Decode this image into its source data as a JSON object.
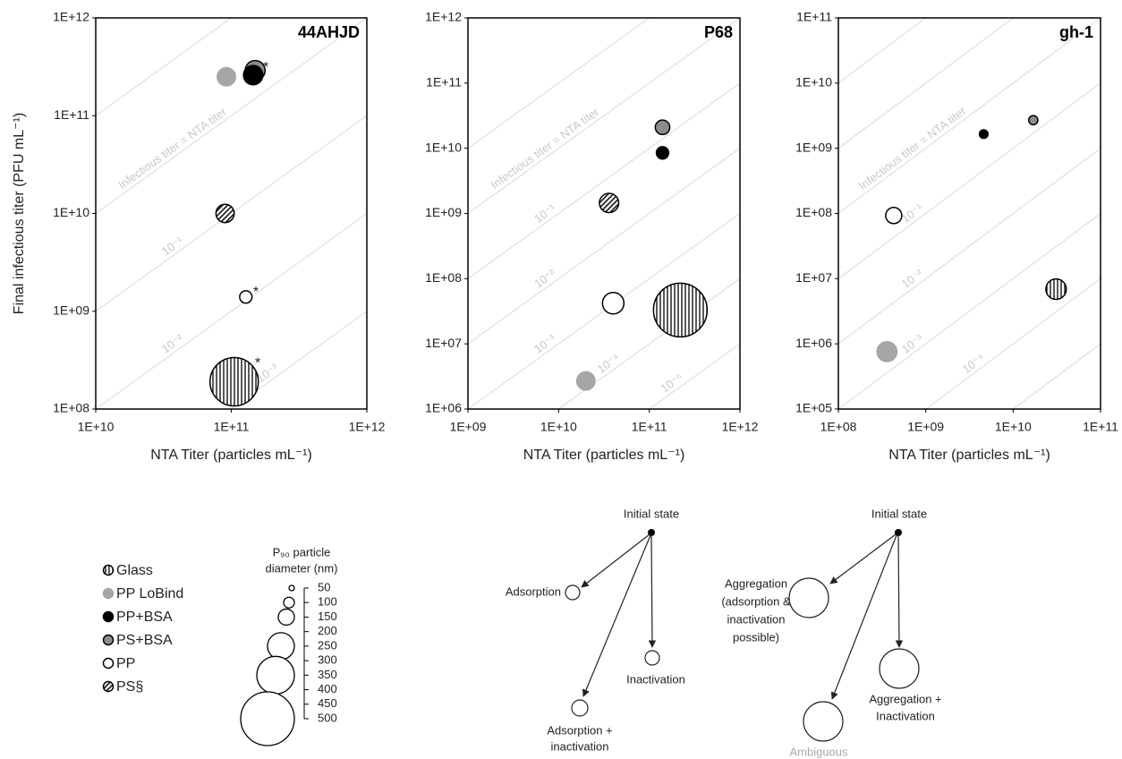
{
  "chart_data": [
    {
      "type": "scatter",
      "title": "44AHJD",
      "xlabel": "NTA Titer (particles mL⁻¹)",
      "ylabel": "Final infectious titer (PFU mL⁻¹)",
      "log_x": true,
      "log_y": true,
      "xlim": [
        10000000000.0,
        1000000000000.0
      ],
      "ylim": [
        100000000.0,
        1000000000000.0
      ],
      "xticks": [
        {
          "value": 10000000000.0,
          "label": "1E+10"
        },
        {
          "value": 100000000000.0,
          "label": "1E+11"
        },
        {
          "value": 1000000000000.0,
          "label": "1E+12"
        }
      ],
      "yticks": [
        {
          "value": 100000000.0,
          "label": "1E+08"
        },
        {
          "value": 1000000000.0,
          "label": "1E+09"
        },
        {
          "value": 10000000000.0,
          "label": "1E+10"
        },
        {
          "value": 100000000000.0,
          "label": "1E+11"
        },
        {
          "value": 1000000000000.0,
          "label": "1E+12"
        }
      ],
      "ratio_lines": [
        {
          "value": 10
        },
        {
          "value": 1,
          "label": "Infectious titer = NTA titer"
        },
        {
          "value": 0.1,
          "label": "10⁻¹"
        },
        {
          "value": 0.01,
          "label": "10⁻²"
        },
        {
          "value": 0.001,
          "label": "10⁻³"
        },
        {
          "value": 0.0001
        }
      ],
      "series": [
        {
          "name": "Glass",
          "color": "#ffffff",
          "edgecolor": "#000000",
          "hatch": "vertical",
          "x": [
            105000000000.0
          ],
          "values": [
            190000000.0
          ],
          "sizes": [
            450
          ],
          "note": "*"
        },
        {
          "name": "PP LoBind",
          "color": "#a6a6a6",
          "edgecolor": "#a6a6a6",
          "x": [
            92000000000.0
          ],
          "values": [
            250000000000.0
          ],
          "sizes": [
            170
          ]
        },
        {
          "name": "PP+BSA",
          "color": "#000000",
          "edgecolor": "#000000",
          "x": [
            145000000000.0
          ],
          "values": [
            260000000000.0
          ],
          "sizes": [
            180
          ],
          "note": "*"
        },
        {
          "name": "PS+BSA",
          "color": "#8c8c8c",
          "edgecolor": "#000000",
          "x": [
            150000000000.0
          ],
          "values": [
            290000000000.0
          ],
          "sizes": [
            185
          ]
        },
        {
          "name": "PP",
          "color": "#ffffff",
          "edgecolor": "#000000",
          "x": [
            128000000000.0
          ],
          "values": [
            1400000000.0
          ],
          "sizes": [
            115
          ],
          "note": "*"
        },
        {
          "name": "PS§",
          "color": "#ffffff",
          "edgecolor": "#000000",
          "hatch": "diagonal",
          "x": [
            90000000000.0
          ],
          "values": [
            10000000000.0
          ],
          "sizes": [
            170
          ]
        }
      ]
    },
    {
      "type": "scatter",
      "title": "P68",
      "xlabel": "NTA Titer (particles mL⁻¹)",
      "log_x": true,
      "log_y": true,
      "xlim": [
        1000000000.0,
        1000000000000.0
      ],
      "ylim": [
        1000000.0,
        1000000000000.0
      ],
      "xticks": [
        {
          "value": 1000000000.0,
          "label": "1E+09"
        },
        {
          "value": 10000000000.0,
          "label": "1E+10"
        },
        {
          "value": 100000000000.0,
          "label": "1E+11"
        },
        {
          "value": 1000000000000.0,
          "label": "1E+12"
        }
      ],
      "yticks": [
        {
          "value": 1000000.0,
          "label": "1E+06"
        },
        {
          "value": 10000000.0,
          "label": "1E+07"
        },
        {
          "value": 100000000.0,
          "label": "1E+08"
        },
        {
          "value": 1000000000.0,
          "label": "1E+09"
        },
        {
          "value": 10000000000.0,
          "label": "1E+10"
        },
        {
          "value": 100000000000.0,
          "label": "1E+11"
        },
        {
          "value": 1000000000000.0,
          "label": "1E+12"
        }
      ],
      "ratio_lines": [
        {
          "value": 10
        },
        {
          "value": 1,
          "label": "Infectious titer = NTA titer"
        },
        {
          "value": 0.1,
          "label": "10⁻¹"
        },
        {
          "value": 0.01,
          "label": "10⁻²"
        },
        {
          "value": 0.001,
          "label": "10⁻³"
        },
        {
          "value": 0.0001,
          "label": "10⁻⁴"
        },
        {
          "value": 1e-05,
          "label": "10⁻⁵"
        }
      ],
      "series": [
        {
          "name": "Glass",
          "color": "#ffffff",
          "edgecolor": "#000000",
          "hatch": "vertical",
          "x": [
            220000000000.0
          ],
          "values": [
            33000000.0
          ],
          "sizes": [
            500
          ]
        },
        {
          "name": "PP LoBind",
          "color": "#a6a6a6",
          "edgecolor": "#a6a6a6",
          "x": [
            20000000000.0
          ],
          "values": [
            2700000.0
          ],
          "sizes": [
            170
          ]
        },
        {
          "name": "PP+BSA",
          "color": "#000000",
          "edgecolor": "#000000",
          "x": [
            140000000000.0
          ],
          "values": [
            8500000000.0
          ],
          "sizes": [
            115
          ]
        },
        {
          "name": "PS+BSA",
          "color": "#8c8c8c",
          "edgecolor": "#000000",
          "x": [
            140000000000.0
          ],
          "values": [
            21000000000.0
          ],
          "sizes": [
            135
          ]
        },
        {
          "name": "PP",
          "color": "#ffffff",
          "edgecolor": "#000000",
          "x": [
            40000000000.0
          ],
          "values": [
            42000000.0
          ],
          "sizes": [
            200
          ]
        },
        {
          "name": "PS§",
          "color": "#ffffff",
          "edgecolor": "#000000",
          "hatch": "diagonal",
          "x": [
            36000000000.0
          ],
          "values": [
            1450000000.0
          ],
          "sizes": [
            180
          ]
        }
      ]
    },
    {
      "type": "scatter",
      "title": "gh-1",
      "xlabel": "NTA Titer (particles mL⁻¹)",
      "log_x": true,
      "log_y": true,
      "xlim": [
        100000000.0,
        100000000000.0
      ],
      "ylim": [
        100000.0,
        100000000000.0
      ],
      "xticks": [
        {
          "value": 100000000.0,
          "label": "1E+08"
        },
        {
          "value": 1000000000.0,
          "label": "1E+09"
        },
        {
          "value": 10000000000.0,
          "label": "1E+10"
        },
        {
          "value": 100000000000.0,
          "label": "1E+11"
        }
      ],
      "yticks": [
        {
          "value": 100000.0,
          "label": "1E+05"
        },
        {
          "value": 1000000.0,
          "label": "1E+06"
        },
        {
          "value": 10000000.0,
          "label": "1E+07"
        },
        {
          "value": 100000000.0,
          "label": "1E+08"
        },
        {
          "value": 1000000000.0,
          "label": "1E+09"
        },
        {
          "value": 10000000000.0,
          "label": "1E+10"
        },
        {
          "value": 100000000000.0,
          "label": "1E+11"
        }
      ],
      "ratio_lines": [
        {
          "value": 100
        },
        {
          "value": 10
        },
        {
          "value": 1,
          "label": "Infectious titer = NTA titer"
        },
        {
          "value": 0.1,
          "label": "10⁻¹"
        },
        {
          "value": 0.01,
          "label": "10⁻²"
        },
        {
          "value": 0.001,
          "label": "10⁻³"
        },
        {
          "value": 0.0001,
          "label": "10⁻⁴"
        },
        {
          "value": 1e-05
        }
      ],
      "series": [
        {
          "name": "Glass",
          "color": "#ffffff",
          "edgecolor": "#000000",
          "hatch": "vertical",
          "x": [
            31000000000.0
          ],
          "values": [
            6900000.0
          ],
          "sizes": [
            190
          ]
        },
        {
          "name": "PP LoBind",
          "color": "#a6a6a6",
          "edgecolor": "#a6a6a6",
          "x": [
            360000000.0
          ],
          "values": [
            760000.0
          ],
          "sizes": [
            185
          ]
        },
        {
          "name": "PP+BSA",
          "color": "#000000",
          "edgecolor": "#000000",
          "x": [
            4600000000.0
          ],
          "values": [
            1650000000.0
          ],
          "sizes": [
            80
          ]
        },
        {
          "name": "PS+BSA",
          "color": "#8c8c8c",
          "edgecolor": "#000000",
          "x": [
            17000000000.0
          ],
          "values": [
            2700000000.0
          ],
          "sizes": [
            85
          ]
        },
        {
          "name": "PP",
          "color": "#ffffff",
          "edgecolor": "#000000",
          "x": [
            430000000.0
          ],
          "values": [
            93000000.0
          ],
          "sizes": [
            150
          ]
        }
      ]
    }
  ],
  "size_legend": {
    "title": [
      "P₉₀ particle",
      "diameter (nm)"
    ],
    "ticks": [
      50,
      100,
      150,
      200,
      250,
      300,
      350,
      400,
      450,
      500
    ],
    "circles": [
      50,
      100,
      150,
      250,
      350,
      500
    ]
  },
  "diagrams": [
    {
      "nodes": [
        {
          "lines": [
            "Initial state"
          ]
        },
        {
          "lines": [
            "Adsorption"
          ]
        },
        {
          "lines": [
            "Inactivation"
          ]
        },
        {
          "lines": [
            "Adsorption +",
            "inactivation"
          ]
        }
      ]
    },
    {
      "nodes": [
        {
          "lines": [
            "Initial state"
          ]
        },
        {
          "lines": [
            "Aggregation",
            "(adsorption &",
            "inactivation",
            "possible)"
          ]
        },
        {
          "lines": [
            "Aggregation +",
            "Inactivation"
          ]
        },
        {
          "lines": [
            "Ambiguous"
          ]
        }
      ]
    }
  ]
}
